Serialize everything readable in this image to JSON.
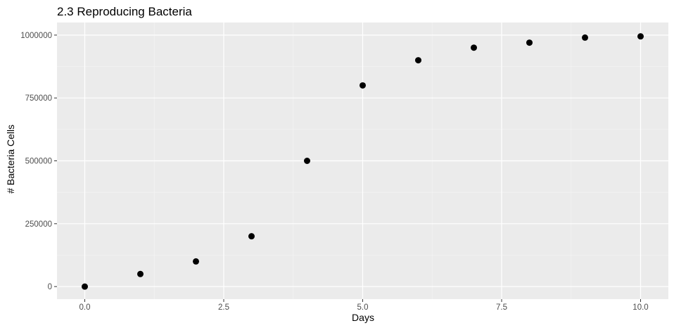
{
  "chart_data": {
    "type": "scatter",
    "title": "2.3 Reproducing Bacteria",
    "xlabel": "Days",
    "ylabel": "# Bacteria Cells",
    "x": [
      0,
      1,
      2,
      3,
      4,
      5,
      6,
      7,
      8,
      9,
      10
    ],
    "y": [
      0,
      50000,
      100000,
      200000,
      500000,
      800000,
      900000,
      950000,
      970000,
      990000,
      995000
    ],
    "xlim": [
      -0.5,
      10.5
    ],
    "ylim": [
      -50000,
      1050000
    ],
    "x_ticks": [
      0,
      2.5,
      5,
      7.5,
      10
    ],
    "x_tick_labels": [
      "0.0",
      "2.5",
      "5.0",
      "7.5",
      "10.0"
    ],
    "y_ticks": [
      0,
      250000,
      500000,
      750000,
      1000000
    ],
    "y_tick_labels": [
      "0",
      "250000",
      "500000",
      "750000",
      "1000000"
    ],
    "grid": true,
    "legend": "none",
    "colors": {
      "panel": "#ebebeb",
      "grid_major": "#ffffff",
      "grid_minor": "#f5f5f5",
      "point": "#000000",
      "tick": "#333333"
    }
  }
}
